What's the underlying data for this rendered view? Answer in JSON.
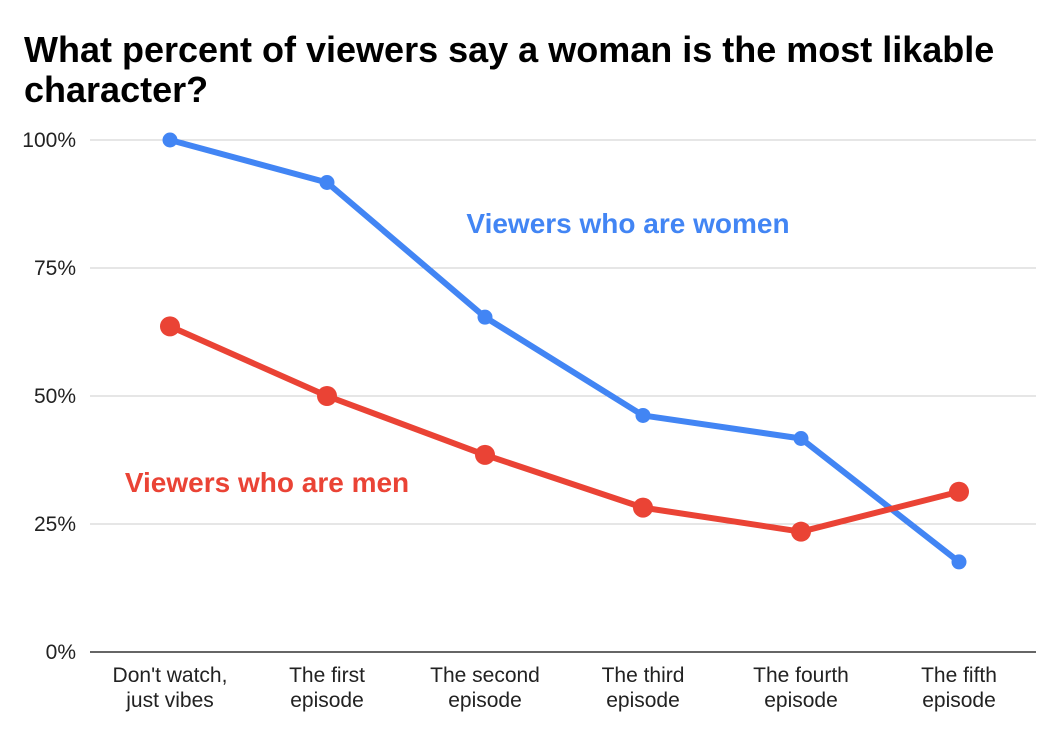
{
  "chart_data": {
    "type": "line",
    "title": "What percent of viewers say a woman is the most likable character?",
    "xlabel": "",
    "ylabel": "",
    "categories": [
      [
        "Don't watch,",
        "just vibes"
      ],
      [
        "The first",
        "episode"
      ],
      [
        "The second",
        "episode"
      ],
      [
        "The third",
        "episode"
      ],
      [
        "The fourth",
        "episode"
      ],
      [
        "The fifth",
        "episode"
      ]
    ],
    "y_ticks": [
      "0%",
      "25%",
      "50%",
      "75%",
      "100%"
    ],
    "ylim": [
      0,
      100
    ],
    "grid": true,
    "series": [
      {
        "name": "Viewers who are women",
        "color": "#4285f4",
        "values": [
          100,
          91.7,
          65.4,
          46.2,
          41.7,
          17.6
        ]
      },
      {
        "name": "Viewers who are men",
        "color": "#ea4335",
        "values": [
          63.6,
          50,
          38.5,
          28.2,
          23.5,
          31.3
        ]
      }
    ]
  }
}
